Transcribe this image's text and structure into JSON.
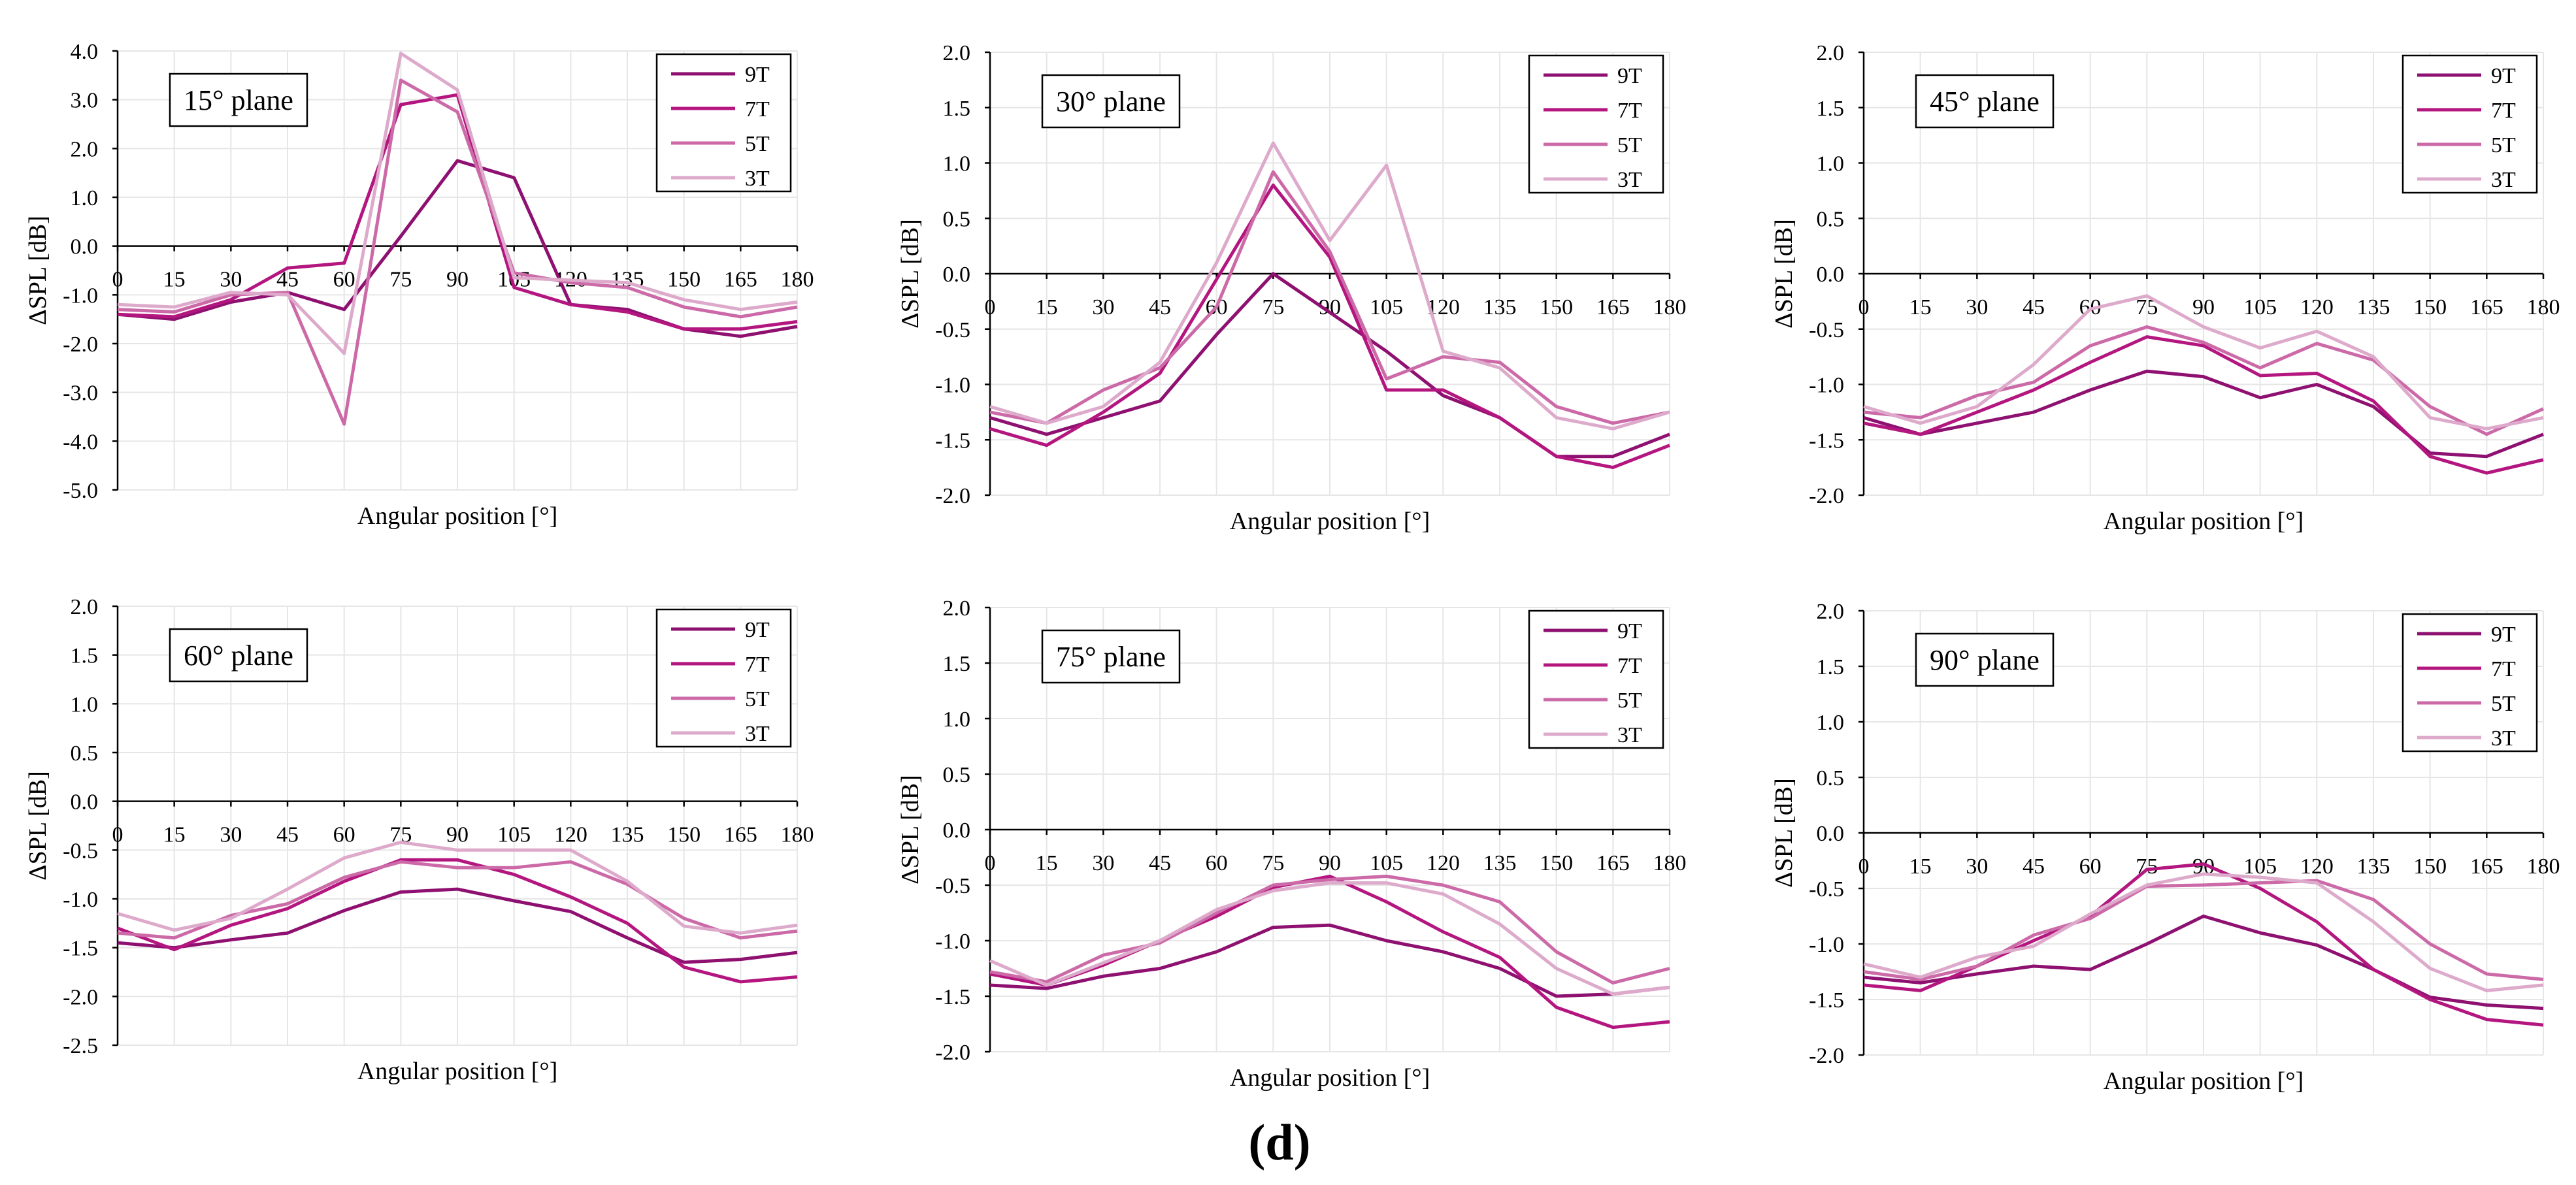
{
  "figure": {
    "label": "(d)"
  },
  "colors": {
    "9T": "#8e1070",
    "7T": "#b4167f",
    "5T": "#cc6aa8",
    "3T": "#ddaacb",
    "grid": "#e6e6e6",
    "axis": "#000000"
  },
  "chart_data": [
    {
      "type": "line",
      "title": "15° plane",
      "xlabel": "Angular position [°]",
      "ylabel": "ΔSPL [dB]",
      "xlim": [
        0,
        180
      ],
      "ylim": [
        -5.0,
        4.0
      ],
      "xticks": [
        "0",
        "15",
        "30",
        "45",
        "60",
        "75",
        "90",
        "105",
        "120",
        "135",
        "150",
        "165",
        "180"
      ],
      "yticks": [
        "4.0",
        "3.0",
        "2.0",
        "1.0",
        "0.0",
        "-1.0",
        "-2.0",
        "-3.0",
        "-4.0",
        "-5.0"
      ],
      "ytick_values": [
        4,
        3,
        2,
        1,
        0,
        -1,
        -2,
        -3,
        -4,
        -5
      ],
      "x": [
        0,
        15,
        30,
        45,
        60,
        75,
        90,
        105,
        120,
        135,
        150,
        165,
        180
      ],
      "legend": [
        "9T",
        "7T",
        "5T",
        "3T"
      ],
      "series": [
        {
          "name": "9T",
          "values": [
            -1.4,
            -1.5,
            -1.15,
            -0.95,
            -1.3,
            0.2,
            1.75,
            1.4,
            -1.2,
            -1.3,
            -1.7,
            -1.85,
            -1.65
          ]
        },
        {
          "name": "7T",
          "values": [
            -1.4,
            -1.45,
            -1.1,
            -0.45,
            -0.35,
            2.9,
            3.1,
            -0.85,
            -1.2,
            -1.35,
            -1.7,
            -1.7,
            -1.55
          ]
        },
        {
          "name": "5T",
          "values": [
            -1.3,
            -1.35,
            -1.0,
            -0.95,
            -3.65,
            3.4,
            2.75,
            -0.55,
            -0.75,
            -0.85,
            -1.25,
            -1.45,
            -1.25
          ]
        },
        {
          "name": "3T",
          "values": [
            -1.2,
            -1.25,
            -0.95,
            -1.0,
            -2.2,
            3.95,
            3.2,
            -0.65,
            -0.7,
            -0.75,
            -1.1,
            -1.3,
            -1.15
          ]
        }
      ]
    },
    {
      "type": "line",
      "title": "30° plane",
      "xlabel": "Angular position [°]",
      "ylabel": "ΔSPL [dB]",
      "xlim": [
        0,
        180
      ],
      "ylim": [
        -2.0,
        2.0
      ],
      "xticks": [
        "0",
        "15",
        "30",
        "45",
        "60",
        "75",
        "90",
        "105",
        "120",
        "135",
        "150",
        "165",
        "180"
      ],
      "yticks": [
        "2.0",
        "1.5",
        "1.0",
        "0.5",
        "0.0",
        "-0.5",
        "-1.0",
        "-1.5",
        "-2.0"
      ],
      "ytick_values": [
        2,
        1.5,
        1,
        0.5,
        0,
        -0.5,
        -1,
        -1.5,
        -2
      ],
      "x": [
        0,
        15,
        30,
        45,
        60,
        75,
        90,
        105,
        120,
        135,
        150,
        165,
        180
      ],
      "legend": [
        "9T",
        "7T",
        "5T",
        "3T"
      ],
      "series": [
        {
          "name": "9T",
          "values": [
            -1.3,
            -1.45,
            -1.3,
            -1.15,
            -0.55,
            0.0,
            -0.35,
            -0.7,
            -1.1,
            -1.3,
            -1.65,
            -1.65,
            -1.45
          ]
        },
        {
          "name": "7T",
          "values": [
            -1.4,
            -1.55,
            -1.25,
            -0.9,
            -0.05,
            0.8,
            0.15,
            -1.05,
            -1.05,
            -1.3,
            -1.65,
            -1.75,
            -1.55
          ]
        },
        {
          "name": "5T",
          "values": [
            -1.25,
            -1.35,
            -1.05,
            -0.85,
            -0.3,
            0.92,
            0.2,
            -0.95,
            -0.75,
            -0.8,
            -1.2,
            -1.35,
            -1.25
          ]
        },
        {
          "name": "3T",
          "values": [
            -1.2,
            -1.35,
            -1.2,
            -0.8,
            0.1,
            1.18,
            0.3,
            0.98,
            -0.7,
            -0.85,
            -1.3,
            -1.4,
            -1.25
          ]
        }
      ]
    },
    {
      "type": "line",
      "title": "45° plane",
      "xlabel": "Angular position [°]",
      "ylabel": "ΔSPL [dB]",
      "xlim": [
        0,
        180
      ],
      "ylim": [
        -2.0,
        2.0
      ],
      "xticks": [
        "0",
        "15",
        "30",
        "45",
        "60",
        "75",
        "90",
        "105",
        "120",
        "135",
        "150",
        "165",
        "180"
      ],
      "yticks": [
        "2.0",
        "1.5",
        "1.0",
        "0.5",
        "0.0",
        "-0.5",
        "-1.0",
        "-1.5",
        "-2.0"
      ],
      "ytick_values": [
        2,
        1.5,
        1,
        0.5,
        0,
        -0.5,
        -1,
        -1.5,
        -2
      ],
      "x": [
        0,
        15,
        30,
        45,
        60,
        75,
        90,
        105,
        120,
        135,
        150,
        165,
        180
      ],
      "legend": [
        "9T",
        "7T",
        "5T",
        "3T"
      ],
      "series": [
        {
          "name": "9T",
          "values": [
            -1.3,
            -1.45,
            -1.35,
            -1.25,
            -1.05,
            -0.88,
            -0.93,
            -1.12,
            -1.0,
            -1.2,
            -1.62,
            -1.65,
            -1.45
          ]
        },
        {
          "name": "7T",
          "values": [
            -1.35,
            -1.45,
            -1.25,
            -1.05,
            -0.8,
            -0.57,
            -0.65,
            -0.92,
            -0.9,
            -1.15,
            -1.65,
            -1.8,
            -1.68
          ]
        },
        {
          "name": "5T",
          "values": [
            -1.25,
            -1.3,
            -1.1,
            -0.98,
            -0.65,
            -0.48,
            -0.62,
            -0.85,
            -0.63,
            -0.78,
            -1.2,
            -1.45,
            -1.22
          ]
        },
        {
          "name": "3T",
          "values": [
            -1.2,
            -1.35,
            -1.2,
            -0.82,
            -0.32,
            -0.2,
            -0.48,
            -0.67,
            -0.52,
            -0.75,
            -1.3,
            -1.4,
            -1.3
          ]
        }
      ]
    },
    {
      "type": "line",
      "title": "60° plane",
      "xlabel": "Angular position [°]",
      "ylabel": "ΔSPL [dB]",
      "xlim": [
        0,
        180
      ],
      "ylim": [
        -2.5,
        2.0
      ],
      "xticks": [
        "0",
        "15",
        "30",
        "45",
        "60",
        "75",
        "90",
        "105",
        "120",
        "135",
        "150",
        "165",
        "180"
      ],
      "yticks": [
        "2.0",
        "1.5",
        "1.0",
        "0.5",
        "0.0",
        "-0.5",
        "-1.0",
        "-1.5",
        "-2.0",
        "-2.5"
      ],
      "ytick_values": [
        2,
        1.5,
        1,
        0.5,
        0,
        -0.5,
        -1,
        -1.5,
        -2,
        -2.5
      ],
      "x": [
        0,
        15,
        30,
        45,
        60,
        75,
        90,
        105,
        120,
        135,
        150,
        165,
        180
      ],
      "legend": [
        "9T",
        "7T",
        "5T",
        "3T"
      ],
      "series": [
        {
          "name": "9T",
          "values": [
            -1.45,
            -1.5,
            -1.42,
            -1.35,
            -1.12,
            -0.93,
            -0.9,
            -1.02,
            -1.13,
            -1.4,
            -1.65,
            -1.62,
            -1.55
          ]
        },
        {
          "name": "7T",
          "values": [
            -1.3,
            -1.52,
            -1.27,
            -1.1,
            -0.82,
            -0.6,
            -0.6,
            -0.75,
            -0.98,
            -1.25,
            -1.7,
            -1.85,
            -1.8
          ]
        },
        {
          "name": "5T",
          "values": [
            -1.35,
            -1.4,
            -1.17,
            -1.05,
            -0.78,
            -0.62,
            -0.68,
            -0.68,
            -0.62,
            -0.85,
            -1.2,
            -1.4,
            -1.33
          ]
        },
        {
          "name": "3T",
          "values": [
            -1.15,
            -1.32,
            -1.2,
            -0.9,
            -0.58,
            -0.42,
            -0.5,
            -0.5,
            -0.5,
            -0.82,
            -1.28,
            -1.35,
            -1.27
          ]
        }
      ]
    },
    {
      "type": "line",
      "title": "75° plane",
      "xlabel": "Angular position [°]",
      "ylabel": "ΔSPL [dB]",
      "xlim": [
        0,
        180
      ],
      "ylim": [
        -2.0,
        2.0
      ],
      "xticks": [
        "0",
        "15",
        "30",
        "45",
        "60",
        "75",
        "90",
        "105",
        "120",
        "135",
        "150",
        "165",
        "180"
      ],
      "yticks": [
        "2.0",
        "1.5",
        "1.0",
        "0.5",
        "0.0",
        "-0.5",
        "-1.0",
        "-1.5",
        "-2.0"
      ],
      "ytick_values": [
        2,
        1.5,
        1,
        0.5,
        0,
        -0.5,
        -1,
        -1.5,
        -2
      ],
      "x": [
        0,
        15,
        30,
        45,
        60,
        75,
        90,
        105,
        120,
        135,
        150,
        165,
        180
      ],
      "legend": [
        "9T",
        "7T",
        "5T",
        "3T"
      ],
      "series": [
        {
          "name": "9T",
          "values": [
            -1.4,
            -1.43,
            -1.32,
            -1.25,
            -1.1,
            -0.88,
            -0.86,
            -1.0,
            -1.1,
            -1.25,
            -1.5,
            -1.48,
            -1.42
          ]
        },
        {
          "name": "7T",
          "values": [
            -1.3,
            -1.4,
            -1.22,
            -1.0,
            -0.78,
            -0.52,
            -0.42,
            -0.65,
            -0.92,
            -1.15,
            -1.6,
            -1.78,
            -1.73
          ]
        },
        {
          "name": "5T",
          "values": [
            -1.28,
            -1.37,
            -1.13,
            -1.02,
            -0.75,
            -0.5,
            -0.45,
            -0.42,
            -0.5,
            -0.65,
            -1.1,
            -1.38,
            -1.25
          ]
        },
        {
          "name": "3T",
          "values": [
            -1.18,
            -1.4,
            -1.2,
            -1.0,
            -0.72,
            -0.55,
            -0.48,
            -0.48,
            -0.58,
            -0.85,
            -1.25,
            -1.48,
            -1.42
          ]
        }
      ]
    },
    {
      "type": "line",
      "title": "90° plane",
      "xlabel": "Angular position [°]",
      "ylabel": "ΔSPL [dB]",
      "xlim": [
        0,
        180
      ],
      "ylim": [
        -2.0,
        2.0
      ],
      "xticks": [
        "0",
        "15",
        "30",
        "45",
        "60",
        "75",
        "90",
        "105",
        "120",
        "135",
        "150",
        "165",
        "180"
      ],
      "yticks": [
        "2.0",
        "1.5",
        "1.0",
        "0.5",
        "0.0",
        "-0.5",
        "-1.0",
        "-1.5",
        "-2.0"
      ],
      "ytick_values": [
        2,
        1.5,
        1,
        0.5,
        0,
        -0.5,
        -1,
        -1.5,
        -2
      ],
      "x": [
        0,
        15,
        30,
        45,
        60,
        75,
        90,
        105,
        120,
        135,
        150,
        165,
        180
      ],
      "legend": [
        "9T",
        "7T",
        "5T",
        "3T"
      ],
      "series": [
        {
          "name": "9T",
          "values": [
            -1.3,
            -1.35,
            -1.27,
            -1.2,
            -1.23,
            -1.0,
            -0.75,
            -0.9,
            -1.01,
            -1.23,
            -1.48,
            -1.55,
            -1.58
          ]
        },
        {
          "name": "7T",
          "values": [
            -1.37,
            -1.42,
            -1.2,
            -0.97,
            -0.75,
            -0.33,
            -0.28,
            -0.5,
            -0.8,
            -1.23,
            -1.5,
            -1.68,
            -1.73
          ]
        },
        {
          "name": "5T",
          "values": [
            -1.25,
            -1.32,
            -1.2,
            -0.92,
            -0.77,
            -0.48,
            -0.47,
            -0.45,
            -0.43,
            -0.6,
            -1.0,
            -1.27,
            -1.32
          ]
        },
        {
          "name": "3T",
          "values": [
            -1.18,
            -1.3,
            -1.12,
            -1.02,
            -0.73,
            -0.47,
            -0.37,
            -0.4,
            -0.45,
            -0.8,
            -1.22,
            -1.42,
            -1.37
          ]
        }
      ]
    }
  ]
}
